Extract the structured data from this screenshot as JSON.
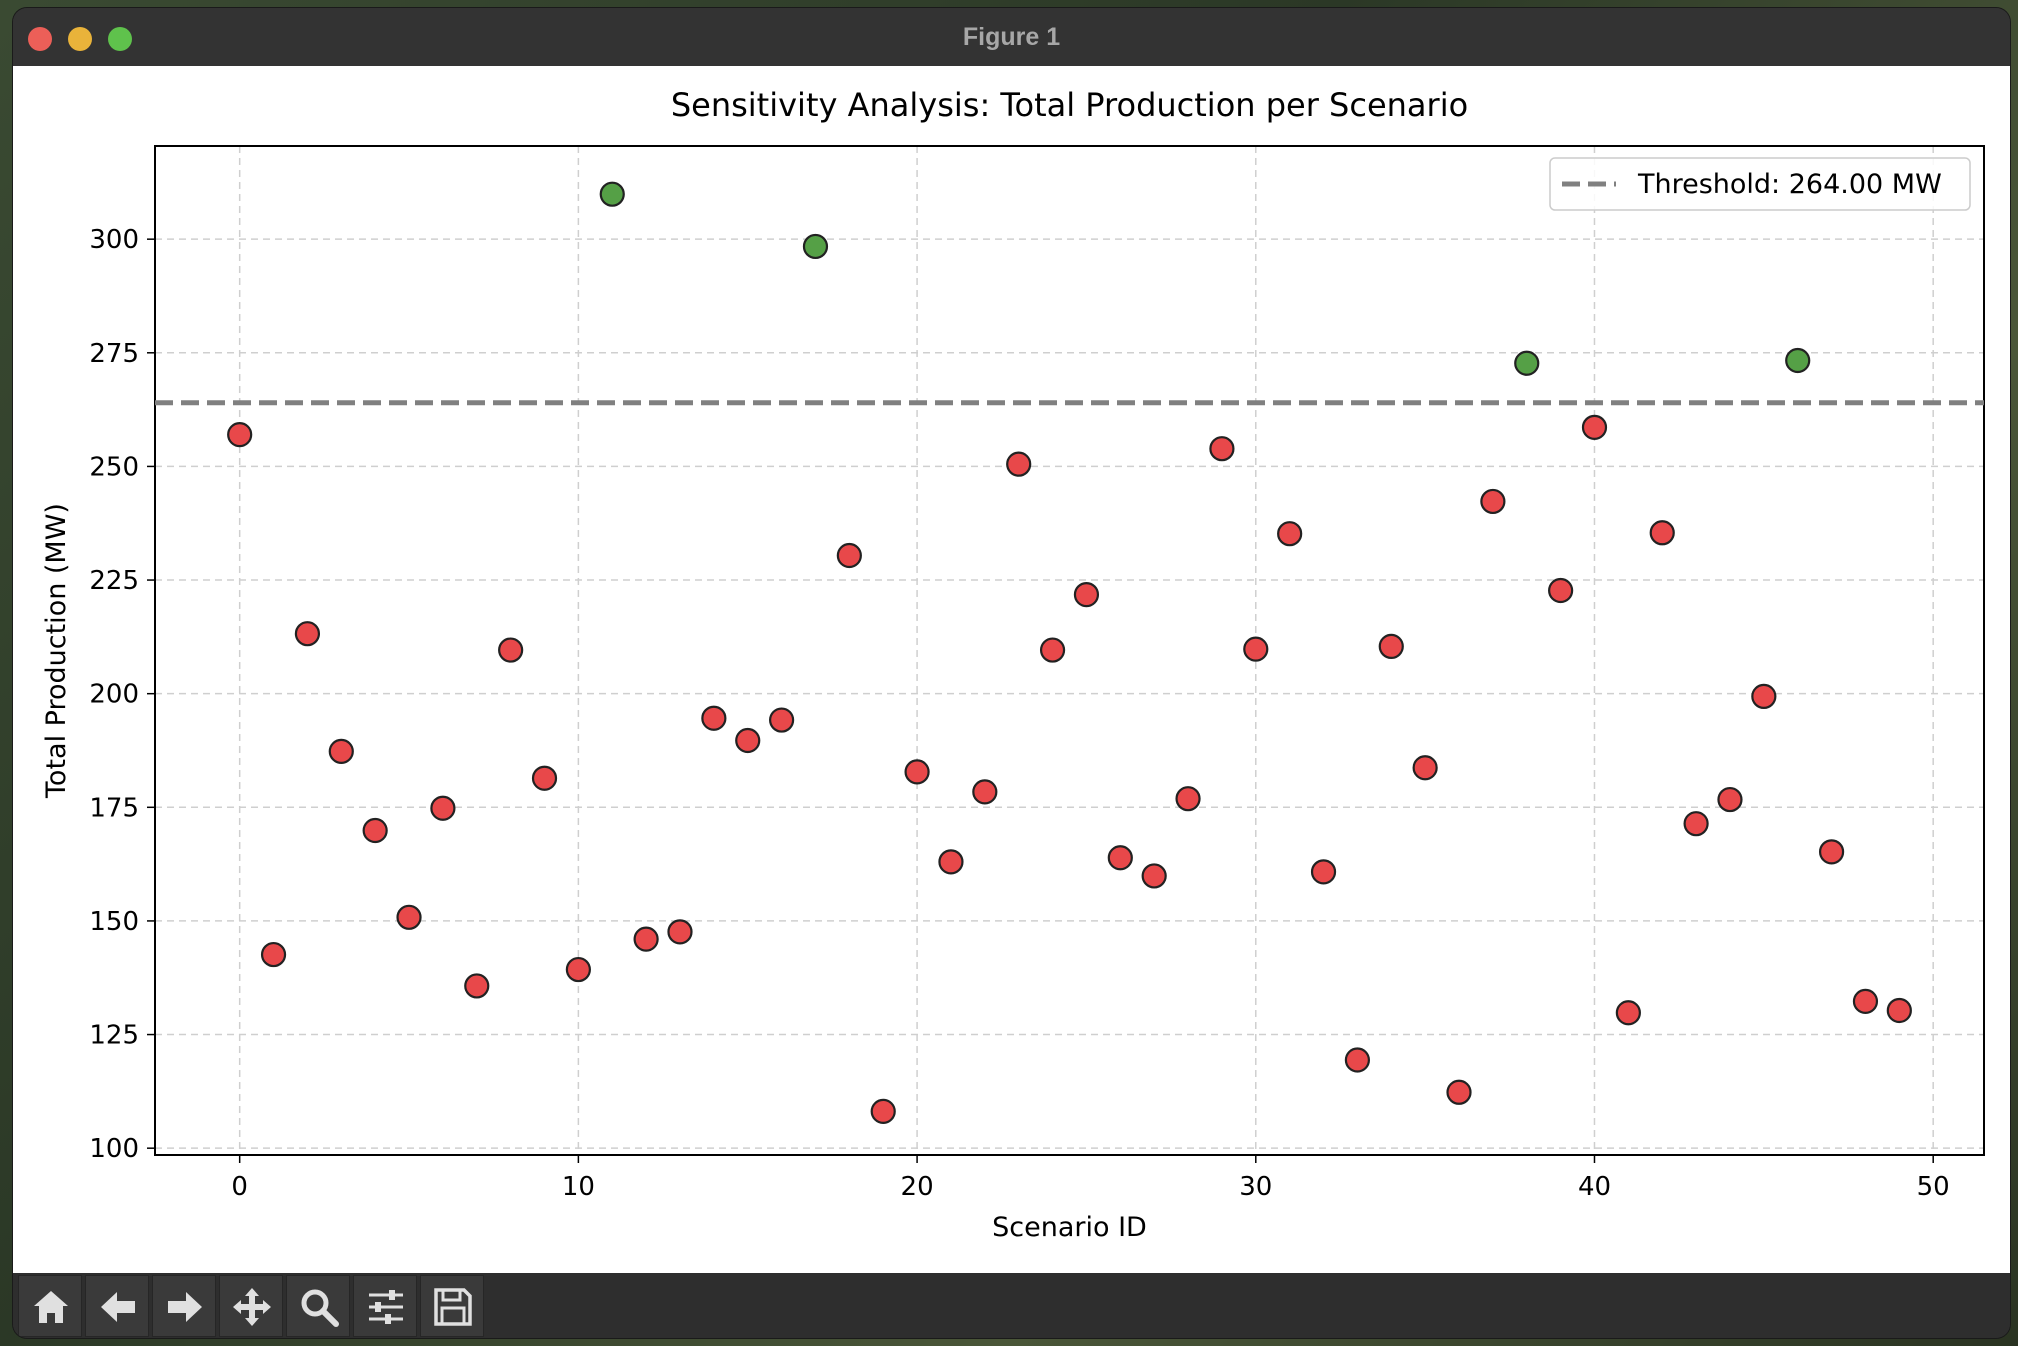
{
  "window": {
    "title": "Figure 1"
  },
  "toolbar": {
    "icons": [
      "home-icon",
      "back-arrow-icon",
      "forward-arrow-icon",
      "pan-move-icon",
      "zoom-icon",
      "configure-subplots-icon",
      "save-icon"
    ]
  },
  "colors": {
    "below_threshold": "#e8484a",
    "above_threshold": "#55a046",
    "threshold_line": "#808080"
  },
  "chart_data": {
    "type": "scatter",
    "title": "Sensitivity Analysis: Total Production per Scenario",
    "xlabel": "Scenario ID",
    "ylabel": "Total Production (MW)",
    "xlim": [
      -2.5,
      51.5
    ],
    "ylim": [
      98.5,
      320.5
    ],
    "xticks": [
      0,
      10,
      20,
      30,
      40,
      50
    ],
    "yticks": [
      100,
      125,
      150,
      175,
      200,
      225,
      250,
      275,
      300
    ],
    "grid": true,
    "legend_position": "top-right",
    "threshold": {
      "value": 264.0,
      "label": "Threshold: 264.00 MW",
      "style": "dashed"
    },
    "x": [
      0,
      1,
      2,
      3,
      4,
      5,
      6,
      7,
      8,
      9,
      10,
      11,
      12,
      13,
      14,
      15,
      16,
      17,
      18,
      19,
      20,
      21,
      22,
      23,
      24,
      25,
      26,
      27,
      28,
      29,
      30,
      31,
      32,
      33,
      34,
      35,
      36,
      37,
      38,
      39,
      40,
      41,
      42,
      43,
      44,
      45,
      46,
      47,
      48,
      49
    ],
    "y": [
      257.0,
      142.6,
      213.2,
      187.3,
      169.9,
      150.8,
      174.8,
      135.7,
      209.6,
      181.4,
      139.3,
      309.9,
      146.0,
      147.6,
      194.6,
      189.7,
      194.2,
      298.4,
      230.4,
      108.1,
      182.8,
      163.0,
      178.4,
      250.5,
      209.6,
      221.8,
      163.9,
      159.9,
      176.9,
      253.9,
      209.8,
      235.2,
      160.8,
      119.4,
      210.4,
      183.7,
      112.3,
      242.3,
      272.7,
      222.7,
      258.6,
      129.8,
      235.4,
      171.4,
      176.7,
      199.4,
      273.3,
      165.2,
      132.3,
      130.3
    ]
  }
}
